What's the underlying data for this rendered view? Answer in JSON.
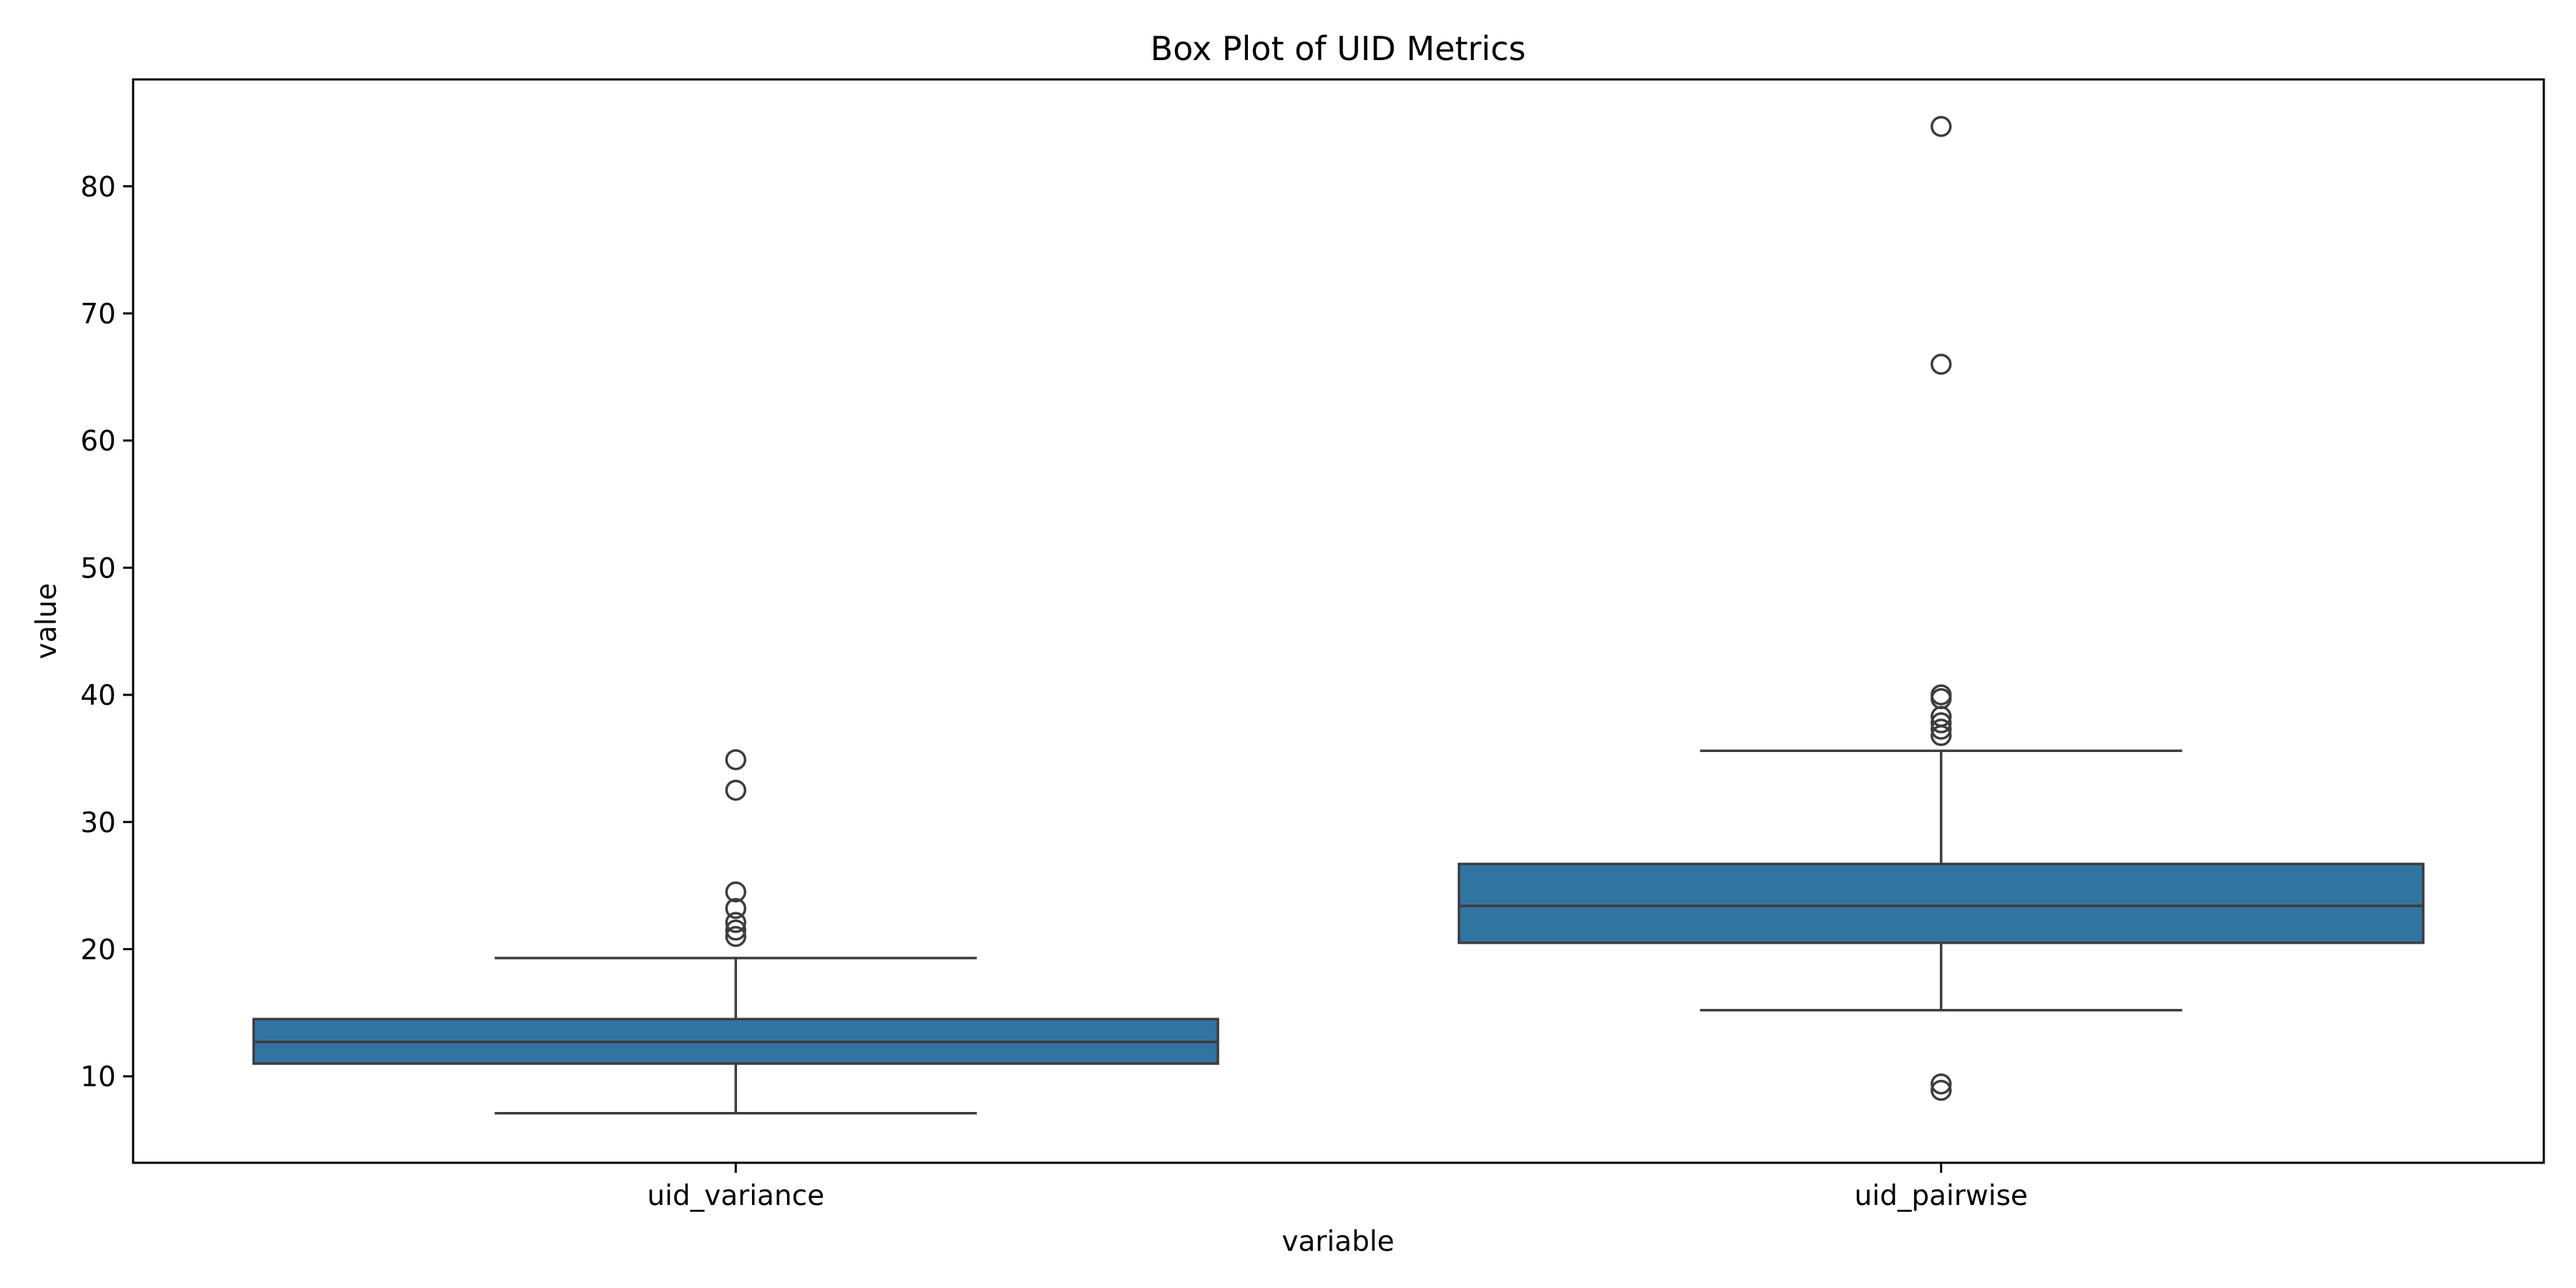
{
  "chart_data": {
    "type": "box",
    "title": "Box Plot of UID Metrics",
    "xlabel": "variable",
    "ylabel": "value",
    "ylim": [
      3.2,
      88.4
    ],
    "yticks": [
      10,
      20,
      30,
      40,
      50,
      60,
      70,
      80
    ],
    "grid": false,
    "legend": "none",
    "box_color": "#3274a1",
    "line_color": "#3d3d3d",
    "categories": [
      "uid_variance",
      "uid_pairwise"
    ],
    "boxes": [
      {
        "category": "uid_variance",
        "whisker_low": 7.1,
        "q1": 11.0,
        "median": 12.7,
        "q3": 14.5,
        "whisker_high": 19.3,
        "outliers": [
          34.9,
          32.5,
          24.5,
          23.2,
          22.1,
          21.5,
          21.0
        ]
      },
      {
        "category": "uid_pairwise",
        "whisker_low": 15.2,
        "q1": 20.5,
        "median": 23.4,
        "q3": 26.7,
        "whisker_high": 35.6,
        "outliers": [
          84.7,
          66.0,
          40.0,
          39.7,
          38.3,
          37.8,
          37.3,
          36.8,
          9.4,
          8.9
        ]
      }
    ]
  }
}
